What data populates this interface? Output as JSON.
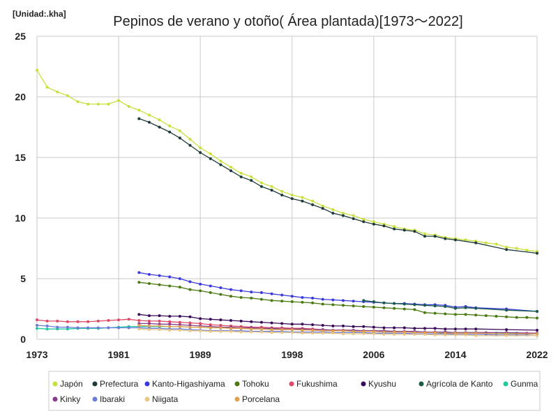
{
  "chart_data": {
    "type": "line",
    "title": "Pepinos de verano y otoño( Área plantada)[1973～2022]",
    "unit_label": "[Unidad:.kha]",
    "xlabel": "",
    "ylabel": "",
    "xlim": [
      1973,
      2022
    ],
    "ylim": [
      0,
      25
    ],
    "x_ticks": [
      1973,
      1981,
      1989,
      1998,
      2006,
      2014,
      2022
    ],
    "y_ticks": [
      0,
      5,
      10,
      15,
      20,
      25
    ],
    "grid": true,
    "legend_position": "bottom",
    "series": [
      {
        "name": "Japón",
        "color": "#c8e03c",
        "x": [
          1973,
          1974,
          1975,
          1976,
          1977,
          1978,
          1979,
          1980,
          1981,
          1982,
          1983,
          1984,
          1985,
          1986,
          1987,
          1988,
          1989,
          1990,
          1991,
          1992,
          1993,
          1994,
          1995,
          1996,
          1997,
          1998,
          1999,
          2000,
          2001,
          2002,
          2003,
          2004,
          2005,
          2006,
          2007,
          2008,
          2009,
          2010,
          2011,
          2012,
          2013,
          2014,
          2015,
          2016,
          2017,
          2018,
          2019,
          2020,
          2021,
          2022
        ],
        "y": [
          22.2,
          20.8,
          20.4,
          20.1,
          19.6,
          19.4,
          19.4,
          19.4,
          19.7,
          19.2,
          18.9,
          18.5,
          18.1,
          17.6,
          17.2,
          16.5,
          15.8,
          15.3,
          14.7,
          14.2,
          13.7,
          13.4,
          12.9,
          12.6,
          12.2,
          11.9,
          11.7,
          11.4,
          11.0,
          10.7,
          10.4,
          10.2,
          9.9,
          9.7,
          9.5,
          9.3,
          9.1,
          9.0,
          8.7,
          8.6,
          8.4,
          8.3,
          8.2,
          8.1,
          7.95,
          7.85,
          7.6,
          7.5,
          7.35,
          7.25
        ]
      },
      {
        "name": "Prefectura",
        "color": "#1e3a3a",
        "x": [
          1983,
          1984,
          1985,
          1986,
          1987,
          1988,
          1989,
          1990,
          1991,
          1992,
          1993,
          1994,
          1995,
          1996,
          1997,
          1998,
          1999,
          2000,
          2001,
          2002,
          2003,
          2004,
          2005,
          2006,
          2007,
          2008,
          2009,
          2010,
          2011,
          2012,
          2013,
          2014,
          2016,
          2019,
          2022
        ],
        "y": [
          18.2,
          17.9,
          17.5,
          17.1,
          16.6,
          16.0,
          15.4,
          14.9,
          14.4,
          13.9,
          13.4,
          13.1,
          12.6,
          12.3,
          11.9,
          11.6,
          11.4,
          11.1,
          10.8,
          10.4,
          10.2,
          9.95,
          9.7,
          9.5,
          9.35,
          9.1,
          9.0,
          8.9,
          8.5,
          8.5,
          8.3,
          8.2,
          7.95,
          7.4,
          7.1
        ]
      },
      {
        "name": "Kanto-Higashiyama",
        "color": "#3a3adc",
        "x": [
          1983,
          1984,
          1985,
          1986,
          1987,
          1988,
          1989,
          1990,
          1991,
          1992,
          1993,
          1994,
          1995,
          1996,
          1997,
          1998,
          1999,
          2000,
          2001,
          2002,
          2003,
          2004,
          2005,
          2006,
          2007,
          2008,
          2009,
          2010,
          2011,
          2012,
          2013,
          2014,
          2015,
          2016,
          2019,
          2022
        ],
        "y": [
          5.5,
          5.35,
          5.25,
          5.15,
          5.0,
          4.75,
          4.55,
          4.4,
          4.25,
          4.1,
          4.0,
          3.9,
          3.85,
          3.75,
          3.65,
          3.55,
          3.45,
          3.4,
          3.3,
          3.25,
          3.2,
          3.15,
          3.1,
          3.05,
          3.0,
          2.95,
          2.95,
          2.9,
          2.85,
          2.85,
          2.8,
          2.65,
          2.7,
          2.6,
          2.5,
          2.3
        ]
      },
      {
        "name": "Tohoku",
        "color": "#4a7a10",
        "x": [
          1983,
          1984,
          1985,
          1986,
          1987,
          1988,
          1989,
          1990,
          1991,
          1992,
          1993,
          1994,
          1995,
          1996,
          1997,
          1998,
          1999,
          2000,
          2001,
          2002,
          2003,
          2004,
          2005,
          2006,
          2007,
          2008,
          2009,
          2010,
          2011,
          2012,
          2013,
          2014,
          2015,
          2016,
          2017,
          2018,
          2019,
          2020,
          2021,
          2022
        ],
        "y": [
          4.7,
          4.6,
          4.5,
          4.4,
          4.3,
          4.1,
          4.0,
          3.85,
          3.7,
          3.55,
          3.45,
          3.4,
          3.3,
          3.2,
          3.15,
          3.1,
          3.05,
          3.0,
          2.9,
          2.85,
          2.8,
          2.75,
          2.7,
          2.65,
          2.6,
          2.55,
          2.5,
          2.45,
          2.2,
          2.15,
          2.1,
          2.05,
          2.05,
          2.0,
          1.95,
          1.9,
          1.85,
          1.8,
          1.8,
          1.75
        ]
      },
      {
        "name": "Fukushima",
        "color": "#e04868",
        "x": [
          1973,
          1974,
          1975,
          1976,
          1977,
          1978,
          1979,
          1980,
          1981,
          1982,
          1983,
          1984,
          1985,
          1986,
          1987,
          1988,
          1989,
          1990,
          1991,
          1992,
          1993,
          1994,
          1995,
          1996,
          1997,
          1998,
          1999,
          2000,
          2001,
          2002,
          2003,
          2004,
          2005,
          2006,
          2007,
          2008,
          2009,
          2010,
          2011,
          2012,
          2013,
          2014,
          2015,
          2016,
          2017,
          2018,
          2019,
          2020,
          2021,
          2022
        ],
        "y": [
          1.6,
          1.5,
          1.5,
          1.45,
          1.45,
          1.45,
          1.5,
          1.55,
          1.6,
          1.65,
          1.55,
          1.5,
          1.5,
          1.45,
          1.4,
          1.35,
          1.3,
          1.2,
          1.15,
          1.1,
          1.05,
          1.0,
          1.0,
          0.95,
          0.95,
          0.9,
          0.9,
          0.85,
          0.8,
          0.75,
          0.75,
          0.7,
          0.7,
          0.7,
          0.65,
          0.65,
          0.65,
          0.6,
          0.6,
          0.6,
          0.6,
          0.55,
          0.55,
          0.55,
          0.55,
          0.5,
          0.5,
          0.5,
          0.5,
          0.5
        ]
      },
      {
        "name": "Kyushu",
        "color": "#3a0a5a",
        "x": [
          1983,
          1984,
          1985,
          1986,
          1987,
          1988,
          1989,
          1990,
          1991,
          1992,
          1993,
          1994,
          1995,
          1996,
          1997,
          1998,
          1999,
          2000,
          2001,
          2002,
          2003,
          2004,
          2005,
          2006,
          2007,
          2008,
          2009,
          2010,
          2011,
          2012,
          2013,
          2014,
          2015,
          2016,
          2019,
          2022
        ],
        "y": [
          2.05,
          1.95,
          1.95,
          1.9,
          1.9,
          1.85,
          1.7,
          1.65,
          1.6,
          1.55,
          1.5,
          1.45,
          1.4,
          1.35,
          1.3,
          1.25,
          1.25,
          1.2,
          1.15,
          1.1,
          1.1,
          1.05,
          1.05,
          1.0,
          0.95,
          0.95,
          0.95,
          0.9,
          0.9,
          0.9,
          0.85,
          0.85,
          0.85,
          0.85,
          0.8,
          0.75
        ]
      },
      {
        "name": "Agrícola de Kanto",
        "color": "#1a5a4a",
        "x": [
          2005,
          2006,
          2007,
          2008,
          2009,
          2010,
          2011,
          2012,
          2013,
          2014,
          2015,
          2016,
          2019,
          2022
        ],
        "y": [
          3.2,
          3.1,
          3.0,
          2.95,
          2.9,
          2.85,
          2.8,
          2.75,
          2.7,
          2.55,
          2.6,
          2.55,
          2.4,
          2.3
        ]
      },
      {
        "name": "Gunma",
        "color": "#20c8a0",
        "x": [
          1973,
          1974,
          1975,
          1976,
          1977,
          1978,
          1979,
          1980,
          1981,
          1982,
          1983,
          1984,
          1985,
          1986,
          1987,
          1988,
          1989,
          1990,
          1991,
          1992,
          1993,
          1994,
          1995,
          1996,
          1997,
          1998,
          1999,
          2000,
          2001,
          2002,
          2003,
          2004,
          2005,
          2006,
          2007,
          2008,
          2009,
          2010,
          2011,
          2012,
          2013,
          2014,
          2015,
          2016,
          2017,
          2018,
          2019,
          2020,
          2021,
          2022
        ],
        "y": [
          0.9,
          0.85,
          0.85,
          0.85,
          0.9,
          0.9,
          0.9,
          0.95,
          1.0,
          1.05,
          1.05,
          1.05,
          1.05,
          1.05,
          1.05,
          1.0,
          1.0,
          0.95,
          0.95,
          0.95,
          0.9,
          0.9,
          0.85,
          0.85,
          0.85,
          0.8,
          0.8,
          0.75,
          0.75,
          0.75,
          0.7,
          0.7,
          0.7,
          0.65,
          0.65,
          0.65,
          0.6,
          0.6,
          0.6,
          0.6,
          0.55,
          0.55,
          0.55,
          0.55,
          0.5,
          0.5,
          0.5,
          0.5,
          0.45,
          0.45
        ]
      },
      {
        "name": "Kinky",
        "color": "#8a3a8a",
        "x": [
          1983,
          1984,
          1985,
          1986,
          1987,
          1988,
          1989,
          1990,
          1991,
          1992,
          1993,
          1994,
          1995,
          1996,
          1997,
          1998,
          1999,
          2000,
          2001,
          2002,
          2003,
          2004,
          2005,
          2006,
          2007,
          2008,
          2009,
          2010,
          2011,
          2012,
          2013,
          2014,
          2015,
          2016,
          2019,
          2022
        ],
        "y": [
          1.3,
          1.3,
          1.25,
          1.25,
          1.2,
          1.15,
          1.1,
          1.05,
          1.0,
          1.0,
          0.95,
          0.95,
          0.9,
          0.9,
          0.85,
          0.85,
          0.85,
          0.8,
          0.8,
          0.75,
          0.75,
          0.75,
          0.7,
          0.7,
          0.7,
          0.65,
          0.65,
          0.65,
          0.6,
          0.6,
          0.6,
          0.55,
          0.55,
          0.55,
          0.55,
          0.5
        ]
      },
      {
        "name": "Ibaraki",
        "color": "#6a7ad8",
        "x": [
          1973,
          1974,
          1975,
          1976,
          1977,
          1978,
          1979,
          1980,
          1981,
          1982,
          1983,
          1984,
          1985,
          1986,
          1987,
          1988,
          1989,
          1990,
          1991,
          1992,
          1993,
          1994,
          1995,
          1996,
          1997,
          1998,
          1999,
          2000,
          2001,
          2002,
          2003,
          2004,
          2005,
          2006,
          2007,
          2008,
          2009,
          2010,
          2011,
          2012,
          2013,
          2014,
          2015,
          2016,
          2017,
          2018,
          2019,
          2020,
          2021,
          2022
        ],
        "y": [
          1.15,
          1.1,
          1.0,
          1.0,
          0.95,
          0.95,
          0.95,
          0.95,
          0.95,
          0.95,
          0.95,
          0.9,
          0.9,
          0.85,
          0.85,
          0.8,
          0.75,
          0.7,
          0.7,
          0.7,
          0.7,
          0.65,
          0.65,
          0.65,
          0.65,
          0.6,
          0.6,
          0.6,
          0.6,
          0.55,
          0.55,
          0.55,
          0.55,
          0.5,
          0.5,
          0.5,
          0.5,
          0.45,
          0.45,
          0.45,
          0.45,
          0.4,
          0.4,
          0.4,
          0.4,
          0.35,
          0.35,
          0.35,
          0.35,
          0.3
        ]
      },
      {
        "name": "Niigata",
        "color": "#e8c888",
        "x": [
          1983,
          1984,
          1985,
          1986,
          1987,
          1988,
          1989,
          1990,
          1991,
          1992,
          1993,
          1994,
          1995,
          1996,
          1997,
          1998,
          1999,
          2000,
          2001,
          2002,
          2003,
          2004,
          2005,
          2006,
          2007,
          2008,
          2009,
          2010,
          2011,
          2012,
          2013,
          2014,
          2015,
          2016,
          2019,
          2022
        ],
        "y": [
          0.85,
          0.8,
          0.8,
          0.75,
          0.75,
          0.7,
          0.7,
          0.65,
          0.65,
          0.65,
          0.6,
          0.6,
          0.6,
          0.55,
          0.55,
          0.55,
          0.5,
          0.5,
          0.5,
          0.5,
          0.45,
          0.45,
          0.45,
          0.45,
          0.4,
          0.4,
          0.4,
          0.4,
          0.4,
          0.35,
          0.35,
          0.35,
          0.35,
          0.3,
          0.3,
          0.3
        ]
      },
      {
        "name": "Porcelana",
        "color": "#e0a050",
        "x": [
          1983,
          1984,
          1985,
          1986,
          1987,
          1988,
          1989,
          1990,
          1991,
          1992,
          1993,
          1994,
          1995,
          1996,
          1997,
          1998,
          1999,
          2000,
          2001,
          2002,
          2003,
          2004,
          2005,
          2006,
          2007,
          2008,
          2009,
          2010,
          2011,
          2012,
          2013,
          2014,
          2015,
          2016,
          2019,
          2022
        ],
        "y": [
          1.15,
          1.1,
          1.1,
          1.05,
          1.05,
          1.0,
          1.0,
          0.95,
          0.95,
          0.9,
          0.9,
          0.85,
          0.85,
          0.8,
          0.8,
          0.8,
          0.75,
          0.75,
          0.7,
          0.7,
          0.7,
          0.65,
          0.65,
          0.65,
          0.6,
          0.6,
          0.6,
          0.55,
          0.55,
          0.55,
          0.5,
          0.5,
          0.5,
          0.5,
          0.45,
          0.45
        ]
      }
    ]
  }
}
